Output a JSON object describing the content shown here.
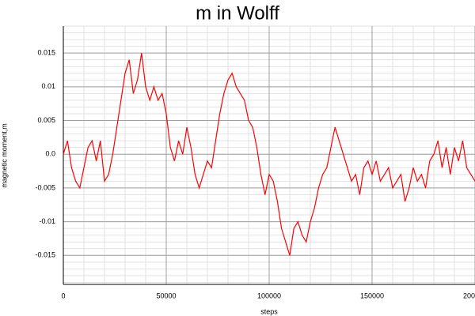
{
  "chart_data": {
    "type": "line",
    "title": "m in Wolff",
    "x_label": "steps",
    "y_label": "magnetic moment,m",
    "x": [
      0,
      2000,
      4000,
      6000,
      8000,
      10000,
      12000,
      14000,
      16000,
      18000,
      20000,
      22000,
      24000,
      26000,
      28000,
      30000,
      32000,
      34000,
      36000,
      38000,
      40000,
      42000,
      44000,
      46000,
      48000,
      50000,
      52000,
      54000,
      56000,
      58000,
      60000,
      62000,
      64000,
      66000,
      68000,
      70000,
      72000,
      74000,
      76000,
      78000,
      80000,
      82000,
      84000,
      86000,
      88000,
      90000,
      92000,
      94000,
      96000,
      98000,
      100000,
      102000,
      104000,
      106000,
      108000,
      110000,
      112000,
      114000,
      116000,
      118000,
      120000,
      122000,
      124000,
      126000,
      128000,
      130000,
      132000,
      134000,
      136000,
      138000,
      140000,
      142000,
      144000,
      146000,
      148000,
      150000,
      152000,
      154000,
      156000,
      158000,
      160000,
      162000,
      164000,
      166000,
      168000,
      170000,
      172000,
      174000,
      176000,
      178000,
      180000,
      182000,
      184000,
      186000,
      188000,
      190000,
      192000,
      194000,
      196000,
      198000,
      200000
    ],
    "series": [
      {
        "name": "m",
        "color": "#ff0000",
        "values": [
          0.0,
          0.002,
          -0.002,
          -0.004,
          -0.005,
          -0.002,
          0.001,
          0.002,
          -0.001,
          0.002,
          -0.004,
          -0.003,
          0.0,
          0.004,
          0.008,
          0.012,
          0.014,
          0.009,
          0.011,
          0.015,
          0.01,
          0.008,
          0.01,
          0.008,
          0.009,
          0.006,
          0.001,
          -0.001,
          0.002,
          0.0,
          0.004,
          0.001,
          -0.003,
          -0.005,
          -0.003,
          -0.001,
          -0.002,
          0.002,
          0.006,
          0.009,
          0.011,
          0.012,
          0.01,
          0.009,
          0.008,
          0.005,
          0.004,
          0.001,
          -0.003,
          -0.006,
          -0.003,
          -0.004,
          -0.007,
          -0.011,
          -0.013,
          -0.015,
          -0.011,
          -0.01,
          -0.012,
          -0.013,
          -0.01,
          -0.008,
          -0.005,
          -0.003,
          -0.002,
          0.001,
          0.004,
          0.002,
          0.0,
          -0.002,
          -0.004,
          -0.003,
          -0.006,
          -0.002,
          -0.001,
          -0.003,
          -0.001,
          -0.004,
          -0.003,
          -0.002,
          -0.005,
          -0.004,
          -0.003,
          -0.007,
          -0.005,
          -0.002,
          -0.004,
          -0.003,
          -0.005,
          -0.001,
          0.0,
          0.002,
          -0.002,
          0.001,
          -0.003,
          0.001,
          -0.001,
          0.002,
          -0.002,
          -0.003,
          -0.004
        ]
      }
    ],
    "xlim": [
      0,
      200000
    ],
    "ylim": [
      -0.0193,
      0.019
    ],
    "xticks": [
      0,
      50000,
      100000,
      150000,
      {
        "value": 200000,
        "label": "200000"
      }
    ],
    "yticks": [
      0.015,
      0.01,
      0.005,
      {
        "value": 0,
        "label": "0.0"
      },
      -0.005,
      -0.01,
      -0.015
    ],
    "grid": true,
    "minor_grid_divisions": 5
  }
}
